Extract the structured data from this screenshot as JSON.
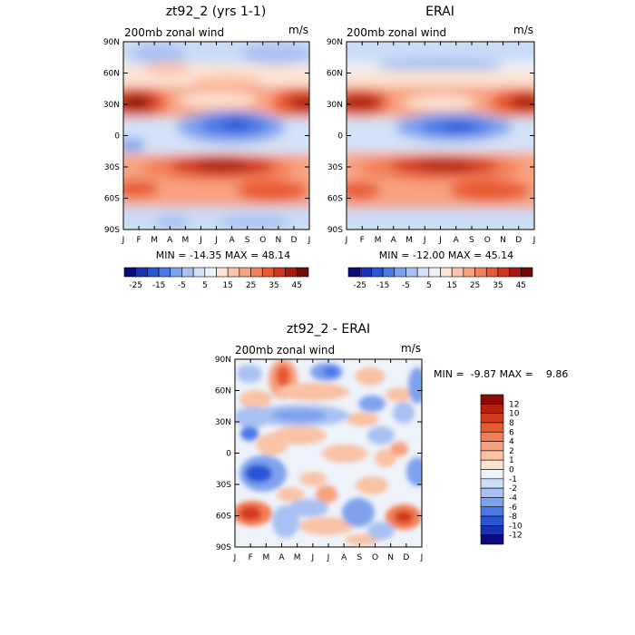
{
  "chart_data": [
    {
      "type": "heatmap",
      "title": "zt92_2 (yrs 1-1)",
      "variable_label": "200mb zonal wind",
      "units": "m/s",
      "stats": "MIN = -14.35 MAX =  48.14",
      "xticks": [
        "J",
        "F",
        "M",
        "A",
        "M",
        "J",
        "J",
        "A",
        "S",
        "O",
        "N",
        "D",
        "J"
      ],
      "yticks": [
        "90N",
        "60N",
        "30N",
        "0",
        "30S",
        "60S",
        "90S"
      ],
      "colorbar": {
        "orientation": "horizontal",
        "levels": [
          -25,
          -15,
          -5,
          5,
          15,
          25,
          35,
          45
        ],
        "tick_labels": [
          "-25",
          "-15",
          "-5",
          "5",
          "15",
          "25",
          "35",
          "45"
        ],
        "colors": [
          "#0b0b7a",
          "#1733b3",
          "#2a55d6",
          "#4a78e8",
          "#7ea2ee",
          "#a9c1f2",
          "#d3e2f7",
          "#eef3fa",
          "#fde4d3",
          "#f9c4aa",
          "#f7a281",
          "#f2805a",
          "#e85a33",
          "#d1371c",
          "#a61a0e",
          "#6e0a08"
        ]
      },
      "fields": {
        "southern_jet": "max near 30S, Jun-Sep",
        "northern_jet": "max near 30N, Dec-Feb",
        "tropical_easterlies": "min near 10N, Jun-Sep"
      },
      "min": -14.35,
      "max": 48.14
    },
    {
      "type": "heatmap",
      "title": "ERAI",
      "variable_label": "200mb zonal wind",
      "units": "m/s",
      "stats": "MIN = -12.00 MAX =  45.14",
      "xticks": [
        "J",
        "F",
        "M",
        "A",
        "M",
        "J",
        "J",
        "A",
        "S",
        "O",
        "N",
        "D",
        "J"
      ],
      "yticks": [
        "90N",
        "60N",
        "30N",
        "0",
        "30S",
        "60S",
        "90S"
      ],
      "colorbar": {
        "orientation": "horizontal",
        "levels": [
          -25,
          -15,
          -5,
          5,
          15,
          25,
          35,
          45
        ],
        "tick_labels": [
          "-25",
          "-15",
          "-5",
          "5",
          "15",
          "25",
          "35",
          "45"
        ],
        "colors": [
          "#0b0b7a",
          "#1733b3",
          "#2a55d6",
          "#4a78e8",
          "#7ea2ee",
          "#a9c1f2",
          "#d3e2f7",
          "#eef3fa",
          "#fde4d3",
          "#f9c4aa",
          "#f7a281",
          "#f2805a",
          "#e85a33",
          "#d1371c",
          "#a61a0e",
          "#6e0a08"
        ]
      },
      "min": -12.0,
      "max": 45.14
    },
    {
      "type": "heatmap",
      "title": "zt92_2 - ERAI",
      "variable_label": "200mb zonal wind",
      "units": "m/s",
      "stats": "MIN =  -9.87 MAX =    9.86",
      "xticks": [
        "J",
        "F",
        "M",
        "A",
        "M",
        "J",
        "J",
        "A",
        "S",
        "O",
        "N",
        "D",
        "J"
      ],
      "yticks": [
        "90N",
        "60N",
        "30N",
        "0",
        "30S",
        "60S",
        "90S"
      ],
      "colorbar": {
        "orientation": "vertical",
        "levels": [
          12,
          10,
          8,
          6,
          4,
          2,
          1,
          0,
          -1,
          -2,
          -4,
          -6,
          -8,
          -10,
          -12
        ],
        "tick_labels": [
          "12",
          "10",
          "8",
          "6",
          "4",
          "2",
          "1",
          "0",
          "-1",
          "-2",
          "-4",
          "-6",
          "-8",
          "-10",
          "-12"
        ],
        "colors": [
          "#8b0a0a",
          "#b3200f",
          "#d13a1a",
          "#e85a30",
          "#f27d55",
          "#f7a07e",
          "#f9c2a4",
          "#fde4d0",
          "#eef3fa",
          "#cfdff5",
          "#a9c1f2",
          "#7ea2ee",
          "#4a78e8",
          "#2a55d6",
          "#1733b3",
          "#0b0b7a"
        ]
      },
      "min": -9.87,
      "max": 9.86
    }
  ]
}
